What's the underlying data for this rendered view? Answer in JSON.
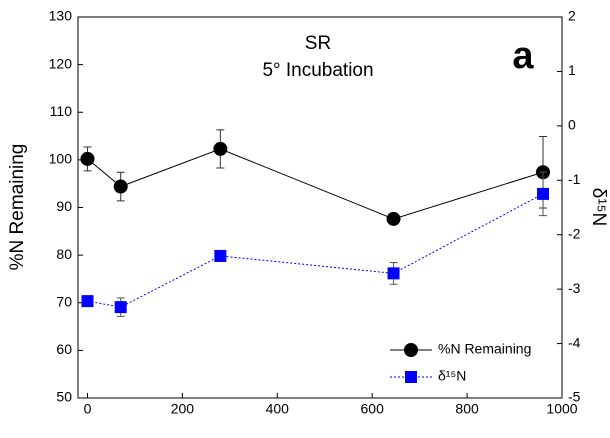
{
  "chart_data": {
    "type": "line",
    "title": "SR",
    "subtitle": "5° Incubation",
    "panel_label": "a",
    "ylabel": "%N Remaining",
    "y2label": "δ¹⁵N",
    "x": [
      0,
      70,
      280,
      645,
      960
    ],
    "series": [
      {
        "name": "%N Remaining",
        "color": "#000000",
        "marker": "circle",
        "line_style": "solid",
        "values": [
          100.2,
          94.4,
          102.3,
          87.6,
          97.4
        ],
        "errors": [
          2.5,
          3,
          4,
          0.5,
          7.5
        ]
      },
      {
        "name": "δ¹⁵N",
        "color": "#0000ff",
        "marker": "square",
        "line_style": "dotted",
        "axis": "y2",
        "values": [
          -3.22,
          -3.33,
          -2.39,
          -2.71,
          -1.25
        ],
        "errors": [
          0,
          0.17,
          0.09,
          0.2,
          0.4
        ]
      }
    ],
    "xlim": [
      -20,
      1000
    ],
    "xticks": [
      0,
      200,
      400,
      600,
      800,
      1000
    ],
    "ylim": [
      50,
      130
    ],
    "yticks": [
      50,
      60,
      70,
      80,
      90,
      100,
      110,
      120,
      130
    ],
    "y2lim": [
      -5,
      2
    ],
    "y2ticks": [
      -5,
      -4,
      -3,
      -2,
      -1,
      0,
      1,
      2
    ],
    "legend": "lower right"
  }
}
